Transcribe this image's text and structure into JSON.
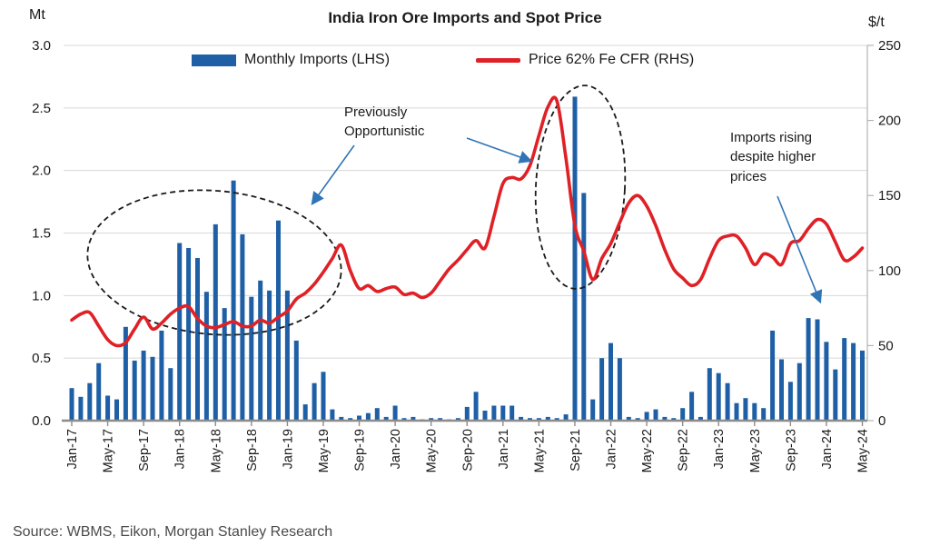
{
  "header": {
    "title": "India Iron Ore Imports and Spot Price",
    "left_unit": "Mt",
    "right_unit": "$/t"
  },
  "legend": {
    "imports": "Monthly Imports (LHS)",
    "price": "Price 62% Fe CFR (RHS)"
  },
  "annotations": {
    "opportunistic": "Previously\nOpportunistic",
    "imports_rising": "Imports rising\ndespite higher\nprices"
  },
  "source": "Source: WBMS, Eikon, Morgan Stanley Research",
  "colors": {
    "bar": "#1e5fa5",
    "line": "#df2127",
    "grid": "#d8d8d8",
    "axis": "#8c8c8c",
    "right_axis_line": "#b3b3b3",
    "annotation_arrow": "#2f74b6",
    "ellipse": "#1a1a1a",
    "text": "#1a1a1a"
  },
  "chart_data": {
    "type": "combo",
    "title": "India Iron Ore Imports and Spot Price",
    "x_start": "Jan-17",
    "x_end": "May-24",
    "months_count": 89,
    "tick_every_months": 4,
    "x_tick_labels": [
      "Jan-17",
      "May-17",
      "Sep-17",
      "Jan-18",
      "May-18",
      "Sep-18",
      "Jan-19",
      "May-19",
      "Sep-19",
      "Jan-20",
      "May-20",
      "Sep-20",
      "Jan-21",
      "May-21",
      "Sep-21",
      "Jan-22",
      "May-22",
      "Sep-22",
      "Jan-23",
      "May-23",
      "Sep-23",
      "Jan-24",
      "May-24"
    ],
    "left_axis": {
      "unit": "Mt",
      "min": 0,
      "max": 3,
      "step": 0.5,
      "tick_labels": [
        "0.0",
        "0.5",
        "1.0",
        "1.5",
        "2.0",
        "2.5",
        "3.0"
      ]
    },
    "right_axis": {
      "unit": "$/t",
      "min": 0,
      "max": 250,
      "step": 50,
      "tick_labels": [
        "0",
        "50",
        "100",
        "150",
        "200",
        "250"
      ]
    },
    "grid": true,
    "legend_position": "top",
    "series": [
      {
        "name": "Monthly Imports (LHS)",
        "type": "bar",
        "axis": "left",
        "color": "#1e5fa5",
        "values": [
          0.26,
          0.19,
          0.3,
          0.46,
          0.2,
          0.17,
          0.75,
          0.48,
          0.56,
          0.51,
          0.72,
          0.42,
          1.42,
          1.38,
          1.3,
          1.03,
          1.57,
          0.9,
          1.92,
          1.49,
          0.99,
          1.12,
          1.04,
          1.6,
          1.04,
          0.64,
          0.13,
          0.3,
          0.39,
          0.09,
          0.03,
          0.02,
          0.04,
          0.06,
          0.1,
          0.03,
          0.12,
          0.02,
          0.03,
          0.01,
          0.02,
          0.02,
          0.01,
          0.02,
          0.11,
          0.23,
          0.08,
          0.12,
          0.12,
          0.12,
          0.03,
          0.02,
          0.02,
          0.03,
          0.02,
          0.05,
          2.59,
          1.82,
          0.17,
          0.5,
          0.62,
          0.5,
          0.03,
          0.02,
          0.07,
          0.09,
          0.03,
          0.02,
          0.1,
          0.23,
          0.03,
          0.42,
          0.38,
          0.3,
          0.14,
          0.18,
          0.14,
          0.1,
          0.72,
          0.49,
          0.31,
          0.46,
          0.82,
          0.81,
          0.63,
          0.41,
          0.66,
          0.62,
          0.56
        ]
      },
      {
        "name": "Price 62% Fe CFR (RHS)",
        "type": "line",
        "axis": "right",
        "color": "#df2127",
        "values": [
          67,
          71,
          72,
          63,
          54,
          50,
          52,
          61,
          69,
          61,
          65,
          71,
          75,
          76,
          68,
          63,
          62,
          64,
          66,
          63,
          63,
          67,
          65,
          69,
          73,
          81,
          85,
          91,
          99,
          108,
          117,
          100,
          88,
          90,
          86,
          88,
          89,
          84,
          85,
          82,
          85,
          93,
          101,
          107,
          114,
          120,
          115,
          136,
          158,
          162,
          161,
          170,
          190,
          209,
          213,
          175,
          130,
          113,
          94,
          108,
          118,
          132,
          145,
          150,
          143,
          130,
          114,
          101,
          95,
          90,
          94,
          108,
          120,
          123,
          123,
          115,
          104,
          111,
          109,
          104,
          118,
          120,
          128,
          134,
          131,
          119,
          107,
          109,
          115
        ]
      }
    ]
  }
}
